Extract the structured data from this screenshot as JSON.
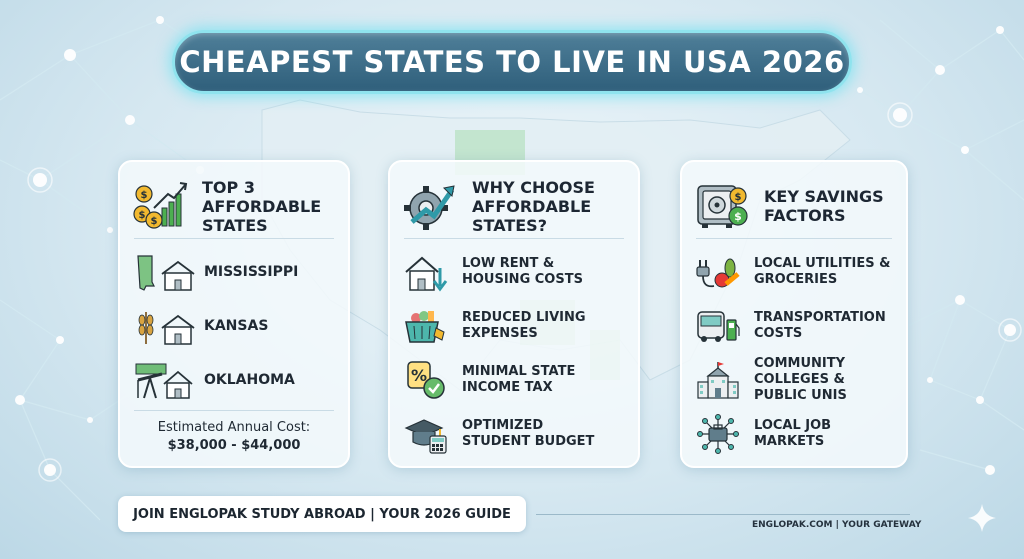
{
  "title": "CHEAPEST STATES TO LIVE IN USA 2026",
  "panels": {
    "top_states": {
      "heading": "TOP 3 AFFORDABLE STATES",
      "icon": "coins-growth-chart-icon",
      "states": [
        {
          "name": "MISSISSIPPI",
          "icon": "mississippi-map-house-icon"
        },
        {
          "name": "KANSAS",
          "icon": "wheat-house-icon"
        },
        {
          "name": "OKLAHOMA",
          "icon": "oil-pump-house-icon"
        }
      ],
      "cost_label": "Estimated Annual Cost:",
      "cost_value": "$38,000 - $44,000"
    },
    "why": {
      "heading": "WHY CHOOSE AFFORDABLE STATES?",
      "icon": "gear-arrow-icon",
      "items": [
        {
          "label": "LOW RENT & HOUSING COSTS",
          "icon": "house-down-arrow-icon"
        },
        {
          "label": "REDUCED LIVING EXPENSES",
          "icon": "grocery-basket-tag-icon"
        },
        {
          "label": "MINIMAL STATE INCOME TAX",
          "icon": "percent-check-icon"
        },
        {
          "label": "OPTIMIZED STUDENT BUDGET",
          "icon": "graduation-cap-calculator-icon"
        }
      ]
    },
    "savings": {
      "heading": "KEY SAVINGS FACTORS",
      "icon": "safe-coins-icon",
      "items": [
        {
          "label": "LOCAL UTILITIES & GROCERIES",
          "icon": "plug-vegetables-icon"
        },
        {
          "label": "TRANSPORTATION COSTS",
          "icon": "bus-fuel-icon"
        },
        {
          "label": "COMMUNITY COLLEGES & PUBLIC UNIS",
          "icon": "school-building-icon"
        },
        {
          "label": "LOCAL JOB MARKETS",
          "icon": "briefcase-network-icon"
        }
      ]
    }
  },
  "footer": {
    "cta": "JOIN ENGLOPAK STUDY ABROAD | YOUR 2026 GUIDE",
    "site": "ENGLOPAK.COM | YOUR GATEWAY"
  },
  "colors": {
    "title_bg": "#3a6a86",
    "glow": "#8fe3ee",
    "accent_green": "#4caf50",
    "accent_teal": "#2f9aa8",
    "coin_gold": "#f2b92f"
  }
}
